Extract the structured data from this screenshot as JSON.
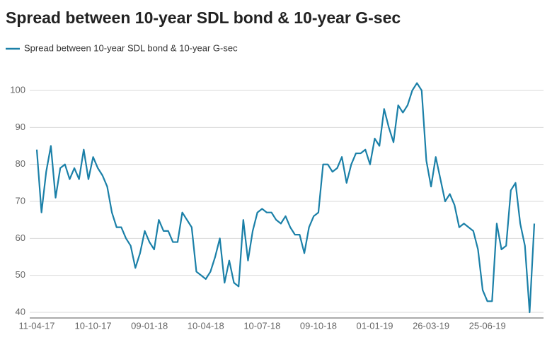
{
  "chart_data": {
    "type": "line",
    "title": "Spread between 10-year SDL bond & 10-year G-sec",
    "categories": [
      "11-04-17",
      null,
      null,
      null,
      null,
      null,
      null,
      null,
      null,
      null,
      null,
      null,
      "10-10-17",
      null,
      null,
      null,
      null,
      null,
      null,
      null,
      null,
      null,
      null,
      null,
      "09-01-18",
      null,
      null,
      null,
      null,
      null,
      null,
      null,
      null,
      null,
      null,
      null,
      "10-04-18",
      null,
      null,
      null,
      null,
      null,
      null,
      null,
      null,
      null,
      null,
      null,
      "10-07-18",
      null,
      null,
      null,
      null,
      null,
      null,
      null,
      null,
      null,
      null,
      null,
      "09-10-18",
      null,
      null,
      null,
      null,
      null,
      null,
      null,
      null,
      null,
      null,
      null,
      "01-01-19",
      null,
      null,
      null,
      null,
      null,
      null,
      null,
      null,
      null,
      null,
      null,
      "26-03-19",
      null,
      null,
      null,
      null,
      null,
      null,
      null,
      null,
      null,
      null,
      null,
      "25-06-19",
      null,
      null,
      null,
      null,
      null,
      null,
      null,
      null,
      null,
      null
    ],
    "series": [
      {
        "name": "Spread between 10-year SDL bond & 10-year G-sec",
        "color": "#1b80a8",
        "values": [
          84,
          67,
          78,
          85,
          71,
          79,
          80,
          76,
          79,
          76,
          84,
          76,
          82,
          79,
          77,
          74,
          67,
          63,
          63,
          60,
          58,
          52,
          56,
          62,
          59,
          57,
          65,
          62,
          62,
          59,
          59,
          67,
          65,
          63,
          51,
          50,
          49,
          51,
          55,
          60,
          48,
          54,
          48,
          47,
          65,
          54,
          62,
          67,
          68,
          67,
          67,
          65,
          64,
          66,
          63,
          61,
          61,
          56,
          63,
          66,
          67,
          80,
          80,
          78,
          79,
          82,
          75,
          80,
          83,
          83,
          84,
          80,
          87,
          85,
          95,
          90,
          86,
          96,
          94,
          96,
          100,
          102,
          100,
          81,
          74,
          82,
          76,
          70,
          72,
          69,
          63,
          64,
          63,
          62,
          57,
          46,
          43,
          43,
          64,
          57,
          58,
          73,
          75,
          64,
          58,
          40,
          64
        ]
      }
    ],
    "ylim": [
      40,
      100
    ],
    "yticks": [
      40,
      50,
      60,
      70,
      80,
      90,
      100
    ],
    "grid": true
  }
}
